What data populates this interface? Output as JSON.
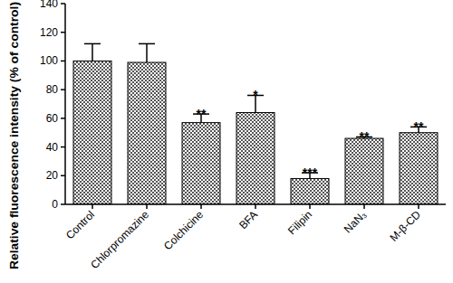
{
  "chart_data": {
    "type": "bar",
    "y_label": "Relative fluorescence intensity (% of control)",
    "categories": [
      "Control",
      "Chlorpromazine",
      "Colchicine",
      "BFA",
      "Filipin",
      "NaN₃",
      "M-β-CD"
    ],
    "values": [
      100,
      99,
      57,
      64,
      18,
      46,
      50
    ],
    "errors": [
      12,
      13,
      6,
      12,
      4,
      1,
      4
    ],
    "significance": [
      null,
      null,
      "**",
      "*",
      "***",
      "**",
      "**"
    ],
    "color": "#555555",
    "ylim": [
      0,
      140
    ],
    "yticks": [
      0,
      20,
      40,
      60,
      80,
      100,
      120,
      140
    ],
    "grid": false
  }
}
